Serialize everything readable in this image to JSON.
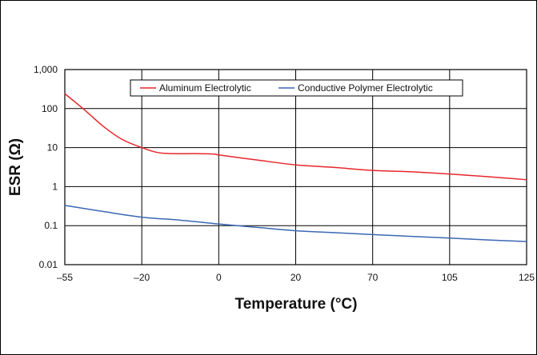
{
  "chart_data": {
    "type": "line",
    "title": "",
    "xlabel": "Temperature (°C)",
    "ylabel": "ESR (Ω)",
    "y_scale": "log",
    "ylim": [
      0.01,
      1000
    ],
    "grid": true,
    "legend_position": "top",
    "categories": [
      "–55",
      "–20",
      "0",
      "20",
      "70",
      "105",
      "125"
    ],
    "y_ticks": [
      {
        "value": 0.01,
        "label": "0.01"
      },
      {
        "value": 0.1,
        "label": "0.1"
      },
      {
        "value": 1,
        "label": "1"
      },
      {
        "value": 10,
        "label": "10"
      },
      {
        "value": 100,
        "label": "100"
      },
      {
        "value": 1000,
        "label": "1,000"
      }
    ],
    "series": [
      {
        "name": "Aluminum Electrolytic",
        "color": "#e8262b",
        "points": [
          {
            "x": 0,
            "y": 240
          },
          {
            "x": 0.25,
            "y": 95
          },
          {
            "x": 0.5,
            "y": 35
          },
          {
            "x": 0.75,
            "y": 16
          },
          {
            "x": 1,
            "y": 10
          },
          {
            "x": 1.2,
            "y": 7.5
          },
          {
            "x": 1.4,
            "y": 7
          },
          {
            "x": 1.7,
            "y": 7
          },
          {
            "x": 1.95,
            "y": 6.8
          },
          {
            "x": 2,
            "y": 6.5
          },
          {
            "x": 2.5,
            "y": 4.8
          },
          {
            "x": 3,
            "y": 3.6
          },
          {
            "x": 3.5,
            "y": 3.1
          },
          {
            "x": 4,
            "y": 2.6
          },
          {
            "x": 4.5,
            "y": 2.4
          },
          {
            "x": 5,
            "y": 2.1
          },
          {
            "x": 5.5,
            "y": 1.8
          },
          {
            "x": 6,
            "y": 1.5
          }
        ]
      },
      {
        "name": "Conductive Polymer Electrolytic",
        "color": "#3a67b3",
        "points": [
          {
            "x": 0,
            "y": 0.33
          },
          {
            "x": 0.5,
            "y": 0.23
          },
          {
            "x": 1,
            "y": 0.165
          },
          {
            "x": 1.5,
            "y": 0.138
          },
          {
            "x": 2,
            "y": 0.11
          },
          {
            "x": 2.5,
            "y": 0.09
          },
          {
            "x": 3,
            "y": 0.074
          },
          {
            "x": 3.5,
            "y": 0.066
          },
          {
            "x": 4,
            "y": 0.059
          },
          {
            "x": 4.5,
            "y": 0.053
          },
          {
            "x": 5,
            "y": 0.048
          },
          {
            "x": 5.5,
            "y": 0.043
          },
          {
            "x": 6,
            "y": 0.039
          }
        ]
      }
    ]
  }
}
